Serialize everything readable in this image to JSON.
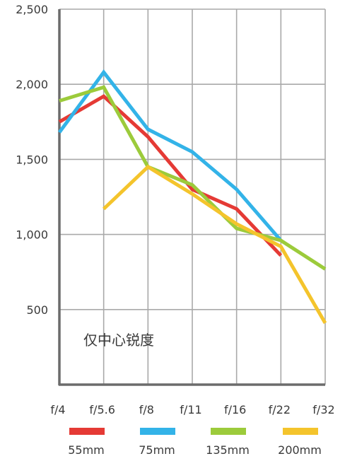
{
  "chart_data": {
    "type": "line",
    "categories": [
      "f/4",
      "f/5.6",
      "f/8",
      "f/11",
      "f/16",
      "f/22",
      "f/32"
    ],
    "y_ticks": [
      "2,500",
      "2,000",
      "1,500",
      "1,000",
      "500"
    ],
    "y_tick_values": [
      2500,
      2000,
      1500,
      1000,
      500
    ],
    "ylim": [
      0,
      2500
    ],
    "annotation": "仅中心锐度",
    "grid": true,
    "legend_position": "bottom",
    "series": [
      {
        "name": "55mm",
        "color": "#e53a35",
        "values": [
          1750,
          1920,
          1650,
          1300,
          1170,
          860,
          null
        ]
      },
      {
        "name": "75mm",
        "color": "#33b3e8",
        "values": [
          1680,
          2080,
          1700,
          1550,
          1300,
          960,
          null
        ]
      },
      {
        "name": "135mm",
        "color": "#9ccb3b",
        "values": [
          1890,
          1980,
          1450,
          1330,
          1040,
          960,
          770
        ]
      },
      {
        "name": "200mm",
        "color": "#f4c42c",
        "values": [
          null,
          1170,
          1450,
          1270,
          1070,
          920,
          410
        ]
      }
    ]
  }
}
